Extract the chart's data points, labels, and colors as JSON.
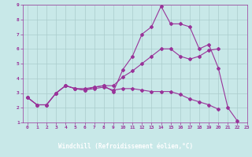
{
  "xlabel": "Windchill (Refroidissement éolien,°C)",
  "xlim": [
    -0.5,
    23
  ],
  "ylim": [
    1,
    9
  ],
  "xticks": [
    0,
    1,
    2,
    3,
    4,
    5,
    6,
    7,
    8,
    9,
    10,
    11,
    12,
    13,
    14,
    15,
    16,
    17,
    18,
    19,
    20,
    21,
    22,
    23
  ],
  "yticks": [
    1,
    2,
    3,
    4,
    5,
    6,
    7,
    8,
    9
  ],
  "bg_color": "#c8e8e8",
  "line_color": "#993399",
  "grid_color": "#aacccc",
  "xlabel_bg": "#993399",
  "xlabel_text_color": "#ffffff",
  "line1_x": [
    0,
    1,
    2,
    3,
    4,
    5,
    6,
    7,
    8,
    9,
    10,
    11,
    12,
    13,
    14,
    15,
    16,
    17,
    18,
    19,
    20,
    21,
    22
  ],
  "line1_y": [
    2.7,
    2.2,
    2.2,
    3.0,
    3.5,
    3.3,
    3.3,
    3.4,
    3.5,
    3.1,
    4.6,
    5.5,
    7.0,
    7.5,
    8.9,
    7.7,
    7.7,
    7.5,
    6.0,
    6.3,
    4.7,
    2.0,
    1.1
  ],
  "line2_x": [
    0,
    1,
    2,
    3,
    4,
    5,
    6,
    7,
    8,
    9,
    10,
    11,
    12,
    13,
    14,
    15,
    16,
    17,
    18,
    19,
    20
  ],
  "line2_y": [
    2.7,
    2.2,
    2.2,
    3.0,
    3.5,
    3.3,
    3.2,
    3.4,
    3.5,
    3.5,
    4.1,
    4.5,
    5.0,
    5.5,
    6.0,
    6.0,
    5.5,
    5.3,
    5.5,
    5.9,
    6.0
  ],
  "line3_x": [
    0,
    1,
    2,
    3,
    4,
    5,
    6,
    7,
    8,
    9,
    10,
    11,
    12,
    13,
    14,
    15,
    16,
    17,
    18,
    19,
    20
  ],
  "line3_y": [
    2.7,
    2.2,
    2.2,
    3.0,
    3.5,
    3.3,
    3.2,
    3.3,
    3.4,
    3.2,
    3.3,
    3.3,
    3.2,
    3.1,
    3.1,
    3.1,
    2.9,
    2.6,
    2.4,
    2.2,
    1.9
  ],
  "marker_size": 2,
  "linewidth": 0.8
}
